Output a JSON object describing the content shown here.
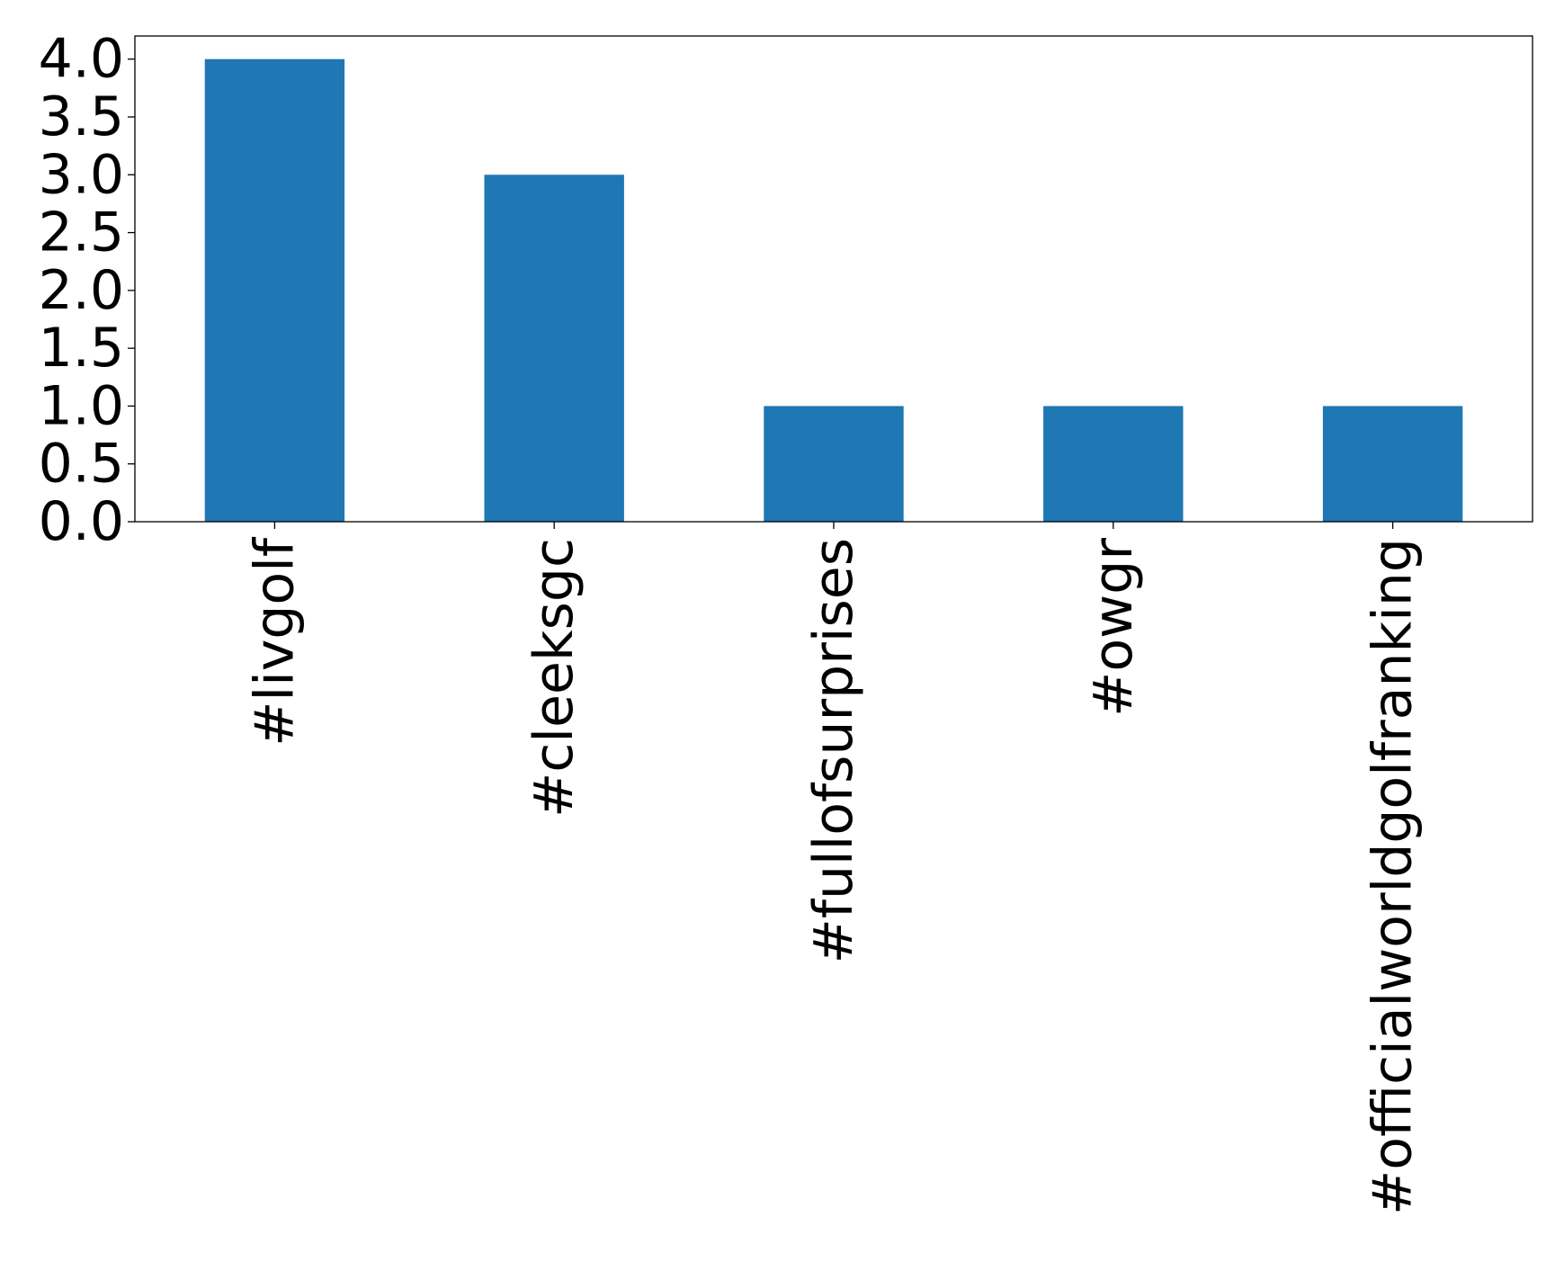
{
  "chart_data": {
    "type": "bar",
    "categories": [
      "#livgolf",
      "#cleeksgc",
      "#fullofsurprises",
      "#owgr",
      "#officialworldgolfranking"
    ],
    "values": [
      4,
      3,
      1,
      1,
      1
    ],
    "title": "",
    "xlabel": "",
    "ylabel": "",
    "ylim": [
      0,
      4.2
    ],
    "yticks": [
      "0.0",
      "0.5",
      "1.0",
      "1.5",
      "2.0",
      "2.5",
      "3.0",
      "3.5",
      "4.0"
    ],
    "grid": false,
    "colors": {
      "bar": "#1f77b4",
      "axis": "#000000"
    }
  }
}
